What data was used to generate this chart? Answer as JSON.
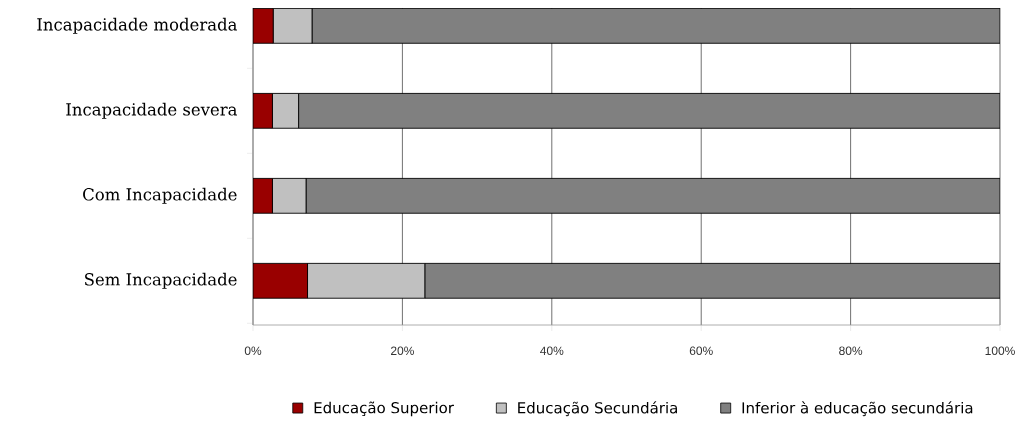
{
  "chart_data": {
    "type": "bar",
    "orientation": "horizontal",
    "stacked": true,
    "categories": [
      "Incapacidade moderada",
      "Incapacidade severa",
      "Com Incapacidade",
      "Sem Incapacidade"
    ],
    "series": [
      {
        "name": "Educação Superior",
        "color": "#990000",
        "values": [
          2.7,
          2.6,
          2.6,
          7.3
        ]
      },
      {
        "name": "Educação Secundária",
        "color": "#c0c0c0",
        "values": [
          5.2,
          3.5,
          4.5,
          15.7
        ]
      },
      {
        "name": "Inferior à educação secundária",
        "color": "#808080",
        "values": [
          92.1,
          93.9,
          92.9,
          77.0
        ]
      }
    ],
    "xlim": [
      0,
      100
    ],
    "xticks": [
      {
        "value": 0,
        "label": "0%"
      },
      {
        "value": 20,
        "label": "20%"
      },
      {
        "value": 40,
        "label": "40%"
      },
      {
        "value": 60,
        "label": "60%"
      },
      {
        "value": 80,
        "label": "80%"
      },
      {
        "value": 100,
        "label": "100%"
      }
    ],
    "grid": "x",
    "legend": "bottom"
  }
}
